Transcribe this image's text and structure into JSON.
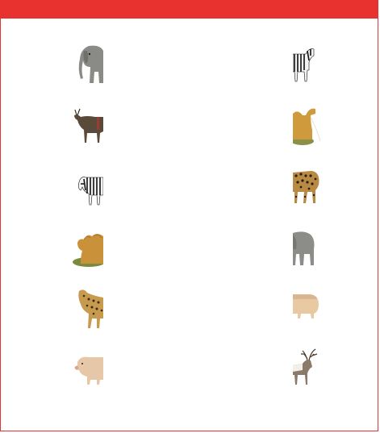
{
  "header": {
    "color": "#e8322f"
  },
  "left_column": [
    {
      "icon": "elephant-half-right-icon"
    },
    {
      "icon": "reindeer-half-right-icon"
    },
    {
      "icon": "zebra-half-right-icon"
    },
    {
      "icon": "camel-half-right-icon"
    },
    {
      "icon": "leopard-half-right-icon"
    },
    {
      "icon": "pig-half-right-icon"
    }
  ],
  "right_column": [
    {
      "icon": "zebra-half-left-icon"
    },
    {
      "icon": "camel-half-left-icon"
    },
    {
      "icon": "leopard-half-left-icon"
    },
    {
      "icon": "elephant-half-left-icon"
    },
    {
      "icon": "pig-half-left-icon"
    },
    {
      "icon": "reindeer-half-left-icon"
    }
  ]
}
